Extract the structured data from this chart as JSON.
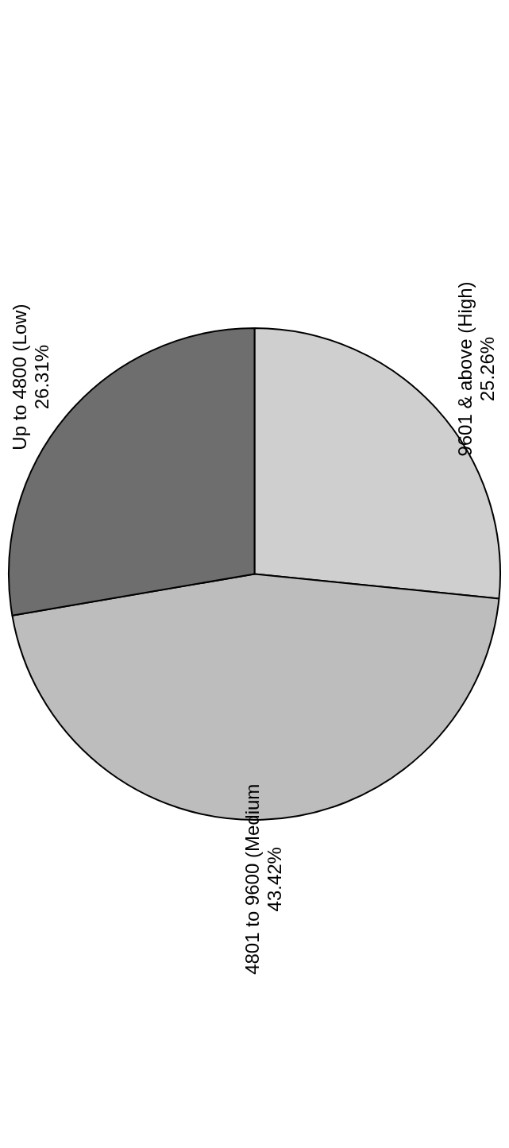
{
  "chart_data": {
    "type": "pie",
    "categories": [
      "9601 & above (High)",
      "4801 to 9600 (Medium",
      "Up to 4800 (Low)"
    ],
    "values": [
      25.26,
      43.42,
      26.31
    ],
    "value_labels": [
      "25.26%",
      "43.42%",
      "26.31%"
    ],
    "colors": [
      "#cfcfcf",
      "#bdbdbd",
      "#6e6e6e"
    ],
    "legend": false
  }
}
